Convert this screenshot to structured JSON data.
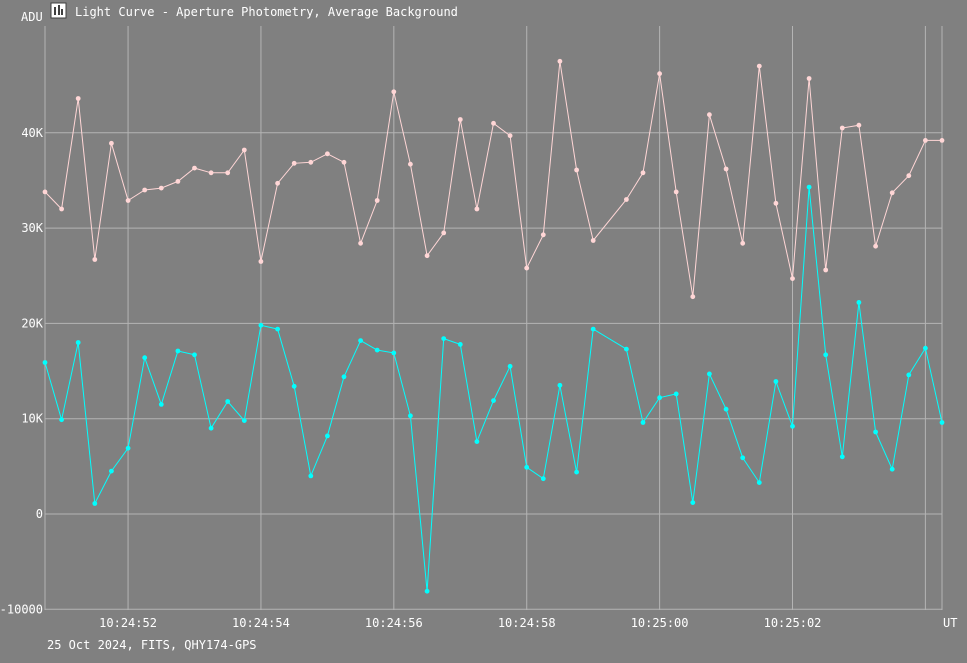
{
  "window": {
    "title": "Light Curve - Aperture Photometry, Average Background",
    "icon": "light-curve-app-icon"
  },
  "footer": {
    "info": "25 Oct 2024, FITS, QHY174-GPS"
  },
  "colors": {
    "background": "#808080",
    "grid": "#b4b4b4",
    "text": "#ffffff",
    "series_1": "#ffd6d6",
    "series_2": "#00ffff"
  },
  "chart_data": {
    "type": "line",
    "title": "Light Curve - Aperture Photometry, Average Background",
    "xlabel": "UT",
    "ylabel": "ADU",
    "grid": true,
    "ylim": [
      -10000,
      52000
    ],
    "xlim": [
      0,
      54
    ],
    "y_ticks": [
      {
        "value": -10000,
        "label": "-10000"
      },
      {
        "value": 0,
        "label": "0"
      },
      {
        "value": 10000,
        "label": "10K"
      },
      {
        "value": 20000,
        "label": "20K"
      },
      {
        "value": 30000,
        "label": "30K"
      },
      {
        "value": 40000,
        "label": "40K"
      }
    ],
    "x_ticks": [
      {
        "value": 5,
        "label": "10:24:52"
      },
      {
        "value": 13,
        "label": "10:24:54"
      },
      {
        "value": 21,
        "label": "10:24:56"
      },
      {
        "value": 29,
        "label": "10:24:58"
      },
      {
        "value": 37,
        "label": "10:25:00"
      },
      {
        "value": 45,
        "label": "10:25:02"
      },
      {
        "value": 53,
        "label": ""
      }
    ],
    "x": [
      0,
      1,
      2,
      3,
      4,
      5,
      6,
      7,
      8,
      9,
      10,
      11,
      12,
      13,
      14,
      15,
      16,
      17,
      18,
      19,
      20,
      21,
      22,
      23,
      24,
      25,
      26,
      27,
      28,
      29,
      30,
      31,
      32,
      33,
      35,
      36,
      37,
      38,
      39,
      40,
      41,
      42,
      43,
      44,
      45,
      46,
      47,
      48,
      49,
      50,
      51,
      52,
      53,
      54
    ],
    "series": [
      {
        "color": "#ffd6d6",
        "values": [
          33800,
          32000,
          43600,
          26700,
          38900,
          32900,
          34000,
          34200,
          34900,
          36300,
          35800,
          35800,
          38200,
          26500,
          34700,
          36800,
          36900,
          37800,
          36900,
          28400,
          32900,
          44300,
          36700,
          27100,
          29500,
          41400,
          32000,
          41000,
          39700,
          25800,
          29300,
          47500,
          36100,
          28700,
          33000,
          35800,
          46200,
          33800,
          22800,
          41900,
          36200,
          28400,
          47000,
          32600,
          24700,
          45700,
          25600,
          40500,
          40800,
          28100,
          33700,
          35500,
          39200,
          39200
        ],
        "note": "upper series"
      },
      {
        "color": "#00ffff",
        "values": [
          15900,
          9900,
          18000,
          1100,
          4500,
          6900,
          16400,
          11500,
          17100,
          16700,
          9000,
          11800,
          9800,
          19800,
          19400,
          13400,
          4000,
          8200,
          14400,
          18200,
          17200,
          16900,
          10300,
          -8100,
          18400,
          17800,
          7600,
          11900,
          15500,
          4900,
          3700,
          13500,
          4400,
          19400,
          17300,
          9600,
          12200,
          12600,
          1200,
          14700,
          11000,
          5900,
          3300,
          13900,
          9200,
          34300,
          16700,
          6000,
          22200,
          8600,
          4700,
          14600,
          17400,
          9600
        ]
      }
    ]
  }
}
